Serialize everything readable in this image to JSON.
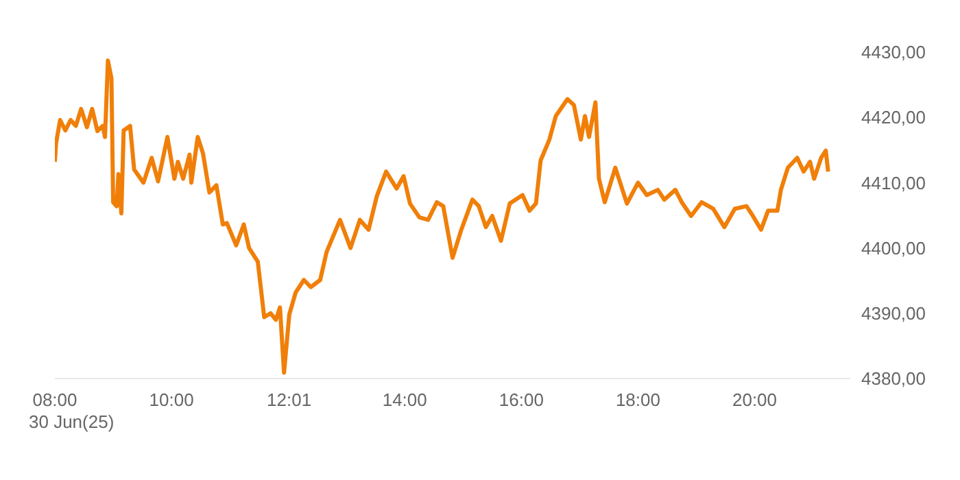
{
  "chart_data": {
    "type": "line",
    "x": [
      8.0,
      8.02,
      8.09,
      8.18,
      8.27,
      8.36,
      8.45,
      8.55,
      8.64,
      8.73,
      8.82,
      8.86,
      8.91,
      8.97,
      9.0,
      9.06,
      9.09,
      9.14,
      9.18,
      9.29,
      9.36,
      9.52,
      9.66,
      9.77,
      9.93,
      10.05,
      10.11,
      10.2,
      10.31,
      10.34,
      10.45,
      10.54,
      10.65,
      10.77,
      10.88,
      10.95,
      11.11,
      11.24,
      11.33,
      11.48,
      11.59,
      11.7,
      11.79,
      11.86,
      11.93,
      12.02,
      12.13,
      12.27,
      12.39,
      12.55,
      12.66,
      12.89,
      13.07,
      13.23,
      13.38,
      13.52,
      13.68,
      13.86,
      13.98,
      14.09,
      14.25,
      14.4,
      14.55,
      14.66,
      14.82,
      14.97,
      15.16,
      15.27,
      15.39,
      15.5,
      15.65,
      15.8,
      16.02,
      16.14,
      16.25,
      16.33,
      16.48,
      16.59,
      16.79,
      16.9,
      17.02,
      17.09,
      17.16,
      17.27,
      17.33,
      17.43,
      17.61,
      17.81,
      18.0,
      18.15,
      18.34,
      18.45,
      18.64,
      18.75,
      18.91,
      19.09,
      19.29,
      19.48,
      19.66,
      19.86,
      19.97,
      20.11,
      20.23,
      20.39,
      20.45,
      20.57,
      20.73,
      20.84,
      20.95,
      21.02,
      21.14,
      21.22,
      21.26
    ],
    "series": [
      {
        "color": "#f07f09",
        "values": [
          4413.2,
          4416,
          4419.6,
          4418,
          4419.6,
          4418.7,
          4421.3,
          4418.5,
          4421.3,
          4417.9,
          4418.7,
          4417,
          4428.7,
          4426,
          4407,
          4406.4,
          4411.3,
          4405.3,
          4418,
          4418.7,
          4412,
          4410,
          4413.8,
          4410.2,
          4417,
          4410.6,
          4413.2,
          4410.6,
          4414.3,
          4410,
          4417,
          4414.5,
          4408.5,
          4409.6,
          4403.6,
          4403.8,
          4400.4,
          4403.6,
          4400,
          4397.9,
          4389.4,
          4390,
          4389,
          4390.9,
          4380.9,
          4389.8,
          4393.2,
          4395.1,
          4394,
          4395.1,
          4399.4,
          4404.3,
          4400,
          4404.3,
          4402.8,
          4407.9,
          4411.7,
          4409.1,
          4411,
          4406.8,
          4404.7,
          4404.3,
          4407,
          4406.4,
          4398.5,
          4402.8,
          4407.4,
          4406.4,
          4403.2,
          4404.9,
          4401.1,
          4406.8,
          4408.1,
          4405.7,
          4406.8,
          4413.4,
          4416.6,
          4420.2,
          4422.8,
          4421.9,
          4416.6,
          4420.2,
          4417,
          4422.3,
          4410.6,
          4407,
          4412.3,
          4406.8,
          4410,
          4408.1,
          4408.9,
          4407.4,
          4408.9,
          4407,
          4404.9,
          4407,
          4406,
          4403.2,
          4406,
          4406.4,
          4404.9,
          4402.8,
          4405.7,
          4405.7,
          4408.9,
          4412.3,
          4413.8,
          4411.7,
          4413.2,
          4410.6,
          4413.8,
          4414.9,
          4411.7
        ]
      }
    ],
    "xlim": [
      8,
      21.64
    ],
    "xticks": [
      {
        "value": 8,
        "label": "08:00"
      },
      {
        "value": 10,
        "label": "10:00"
      },
      {
        "value": 12.0167,
        "label": "12:01"
      },
      {
        "value": 14,
        "label": "14:00"
      },
      {
        "value": 16,
        "label": "16:00"
      },
      {
        "value": 18,
        "label": "18:00"
      },
      {
        "value": 20,
        "label": "20:00"
      }
    ],
    "ylim": [
      4380,
      4430
    ],
    "yticks": [
      {
        "value": 4380,
        "label": "4380,00"
      },
      {
        "value": 4390,
        "label": "4390,00"
      },
      {
        "value": 4400,
        "label": "4400,00"
      },
      {
        "value": 4410,
        "label": "4410,00"
      },
      {
        "value": 4420,
        "label": "4420,00"
      },
      {
        "value": 4430,
        "label": "4430,00"
      }
    ],
    "annotations": [
      "30 Jun(25)"
    ],
    "grid": false,
    "marker": "none",
    "line_style": "solid"
  }
}
